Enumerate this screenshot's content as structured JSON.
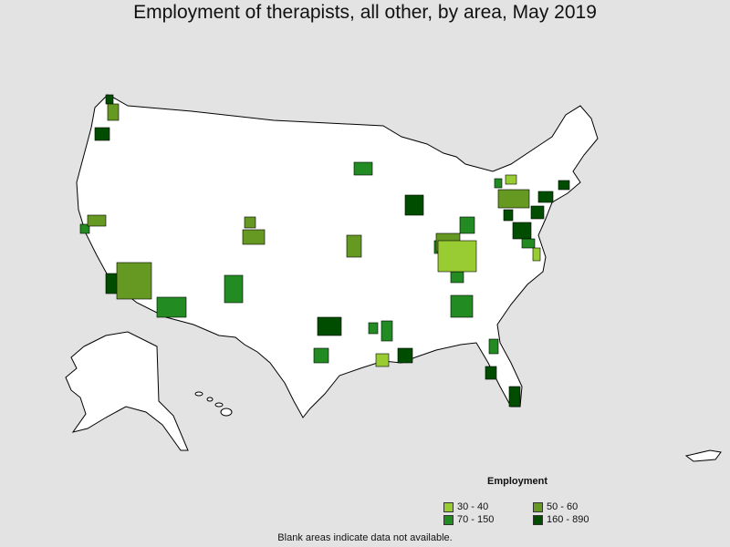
{
  "title": "Employment of therapists, all other, by area, May 2019",
  "legend": {
    "title": "Employment",
    "items": [
      {
        "label": "30 - 40",
        "color": "#99cc33"
      },
      {
        "label": "50 - 60",
        "color": "#669922"
      },
      {
        "label": "70 - 150",
        "color": "#228b22"
      },
      {
        "label": "160 - 890",
        "color": "#004d00"
      }
    ]
  },
  "note": "Blank areas indicate data not available.",
  "colors": {
    "background": "#e3e3e3",
    "land": "#ffffff",
    "border": "#000000"
  }
}
